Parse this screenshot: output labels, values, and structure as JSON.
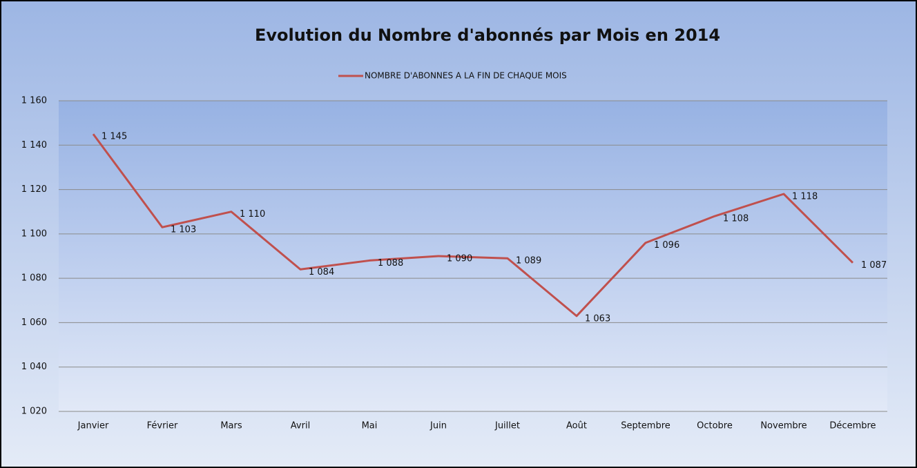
{
  "chart_data": {
    "type": "line",
    "title": "Evolution du Nombre d'abonnés par Mois en 2014",
    "categories": [
      "Janvier",
      "Février",
      "Mars",
      "Avril",
      "Mai",
      "Juin",
      "Juillet",
      "Août",
      "Septembre",
      "Octobre",
      "Novembre",
      "Décembre"
    ],
    "series": [
      {
        "name": "NOMBRE D'ABONNES A LA FIN DE CHAQUE MOIS",
        "color": "#c0504d",
        "values": [
          1145,
          1103,
          1110,
          1084,
          1088,
          1090,
          1089,
          1063,
          1096,
          1108,
          1118,
          1087
        ],
        "value_labels": [
          "1 145",
          "1 103",
          "1 110",
          "1 084",
          "1 088",
          "1 090",
          "1 089",
          "1 063",
          "1 096",
          "1 108",
          "1 118",
          "1 087"
        ]
      }
    ],
    "ylim": [
      1020,
      1160
    ],
    "yticks": [
      {
        "value": 1020,
        "label": "1 020"
      },
      {
        "value": 1040,
        "label": "1 040"
      },
      {
        "value": 1060,
        "label": "1 060"
      },
      {
        "value": 1080,
        "label": "1 080"
      },
      {
        "value": 1100,
        "label": "1 100"
      },
      {
        "value": 1120,
        "label": "1 120"
      },
      {
        "value": 1140,
        "label": "1 140"
      },
      {
        "value": 1160,
        "label": "1 160"
      }
    ],
    "grid": true,
    "legend": "top"
  }
}
